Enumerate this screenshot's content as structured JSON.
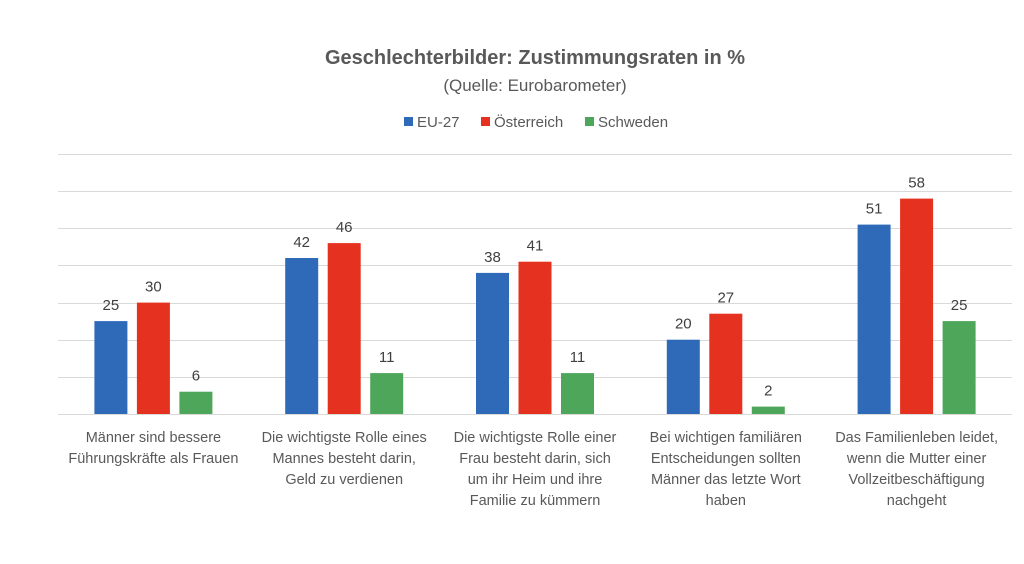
{
  "chart_data": {
    "type": "bar",
    "title": "Geschlechterbilder: Zustimmungsraten in %",
    "subtitle": "(Quelle: Eurobarometer)",
    "xlabel": "",
    "ylabel": "",
    "ylim": [
      0,
      70
    ],
    "y_tick_step": 10,
    "grid": true,
    "y_tick_labels_visible": false,
    "legend_position": "top-center",
    "categories": [
      [
        "Männer sind bessere",
        "Führungskräfte als Frauen"
      ],
      [
        "Die wichtigste Rolle eines",
        "Mannes besteht darin,",
        "Geld zu verdienen"
      ],
      [
        "Die wichtigste Rolle einer",
        "Frau besteht darin, sich",
        "um ihr Heim und ihre",
        "Familie zu kümmern"
      ],
      [
        "Bei wichtigen familiären",
        "Entscheidungen sollten",
        "Männer das letzte Wort",
        "haben"
      ],
      [
        "Das Familienleben leidet,",
        "wenn die Mutter einer",
        "Vollzeitbeschäftigung",
        "nachgeht"
      ]
    ],
    "series": [
      {
        "name": "EU-27",
        "color": "#2e6ab8",
        "values": [
          25,
          42,
          38,
          20,
          51
        ]
      },
      {
        "name": "Österreich",
        "color": "#e5311f",
        "values": [
          30,
          46,
          41,
          27,
          58
        ]
      },
      {
        "name": "Schweden",
        "color": "#4ea65a",
        "values": [
          6,
          11,
          11,
          2,
          25
        ]
      }
    ]
  }
}
